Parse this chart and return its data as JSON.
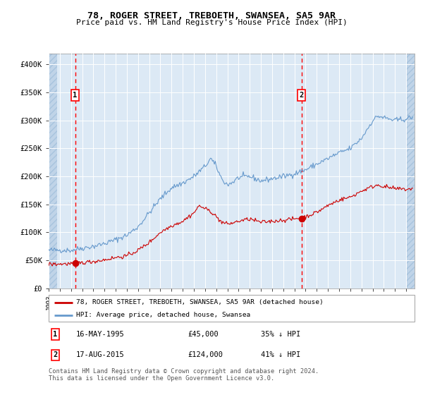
{
  "title": "78, ROGER STREET, TREBOETH, SWANSEA, SA5 9AR",
  "subtitle": "Price paid vs. HM Land Registry's House Price Index (HPI)",
  "legend_line1": "78, ROGER STREET, TREBOETH, SWANSEA, SA5 9AR (detached house)",
  "legend_line2": "HPI: Average price, detached house, Swansea",
  "marker1_date_num": 1995.37,
  "marker1_price": 45000,
  "marker1_label": "16-MAY-1995",
  "marker1_pct": "35% ↓ HPI",
  "marker2_date_num": 2015.63,
  "marker2_price": 124000,
  "marker2_label": "17-AUG-2015",
  "marker2_pct": "41% ↓ HPI",
  "footer": "Contains HM Land Registry data © Crown copyright and database right 2024.\nThis data is licensed under the Open Government Licence v3.0.",
  "bg_color": "#dce9f5",
  "hatch_color": "#c0d4e8",
  "grid_color": "#ffffff",
  "red_color": "#cc0000",
  "blue_color": "#6699cc",
  "ylim_max": 420000,
  "yticks": [
    0,
    50000,
    100000,
    150000,
    200000,
    250000,
    300000,
    350000,
    400000
  ],
  "ytick_labels": [
    "£0",
    "£50K",
    "£100K",
    "£150K",
    "£200K",
    "£250K",
    "£300K",
    "£350K",
    "£400K"
  ],
  "xmin": 1993.0,
  "xmax": 2025.75,
  "hatch_left_end": 1993.75,
  "hatch_right_start": 2025.0
}
